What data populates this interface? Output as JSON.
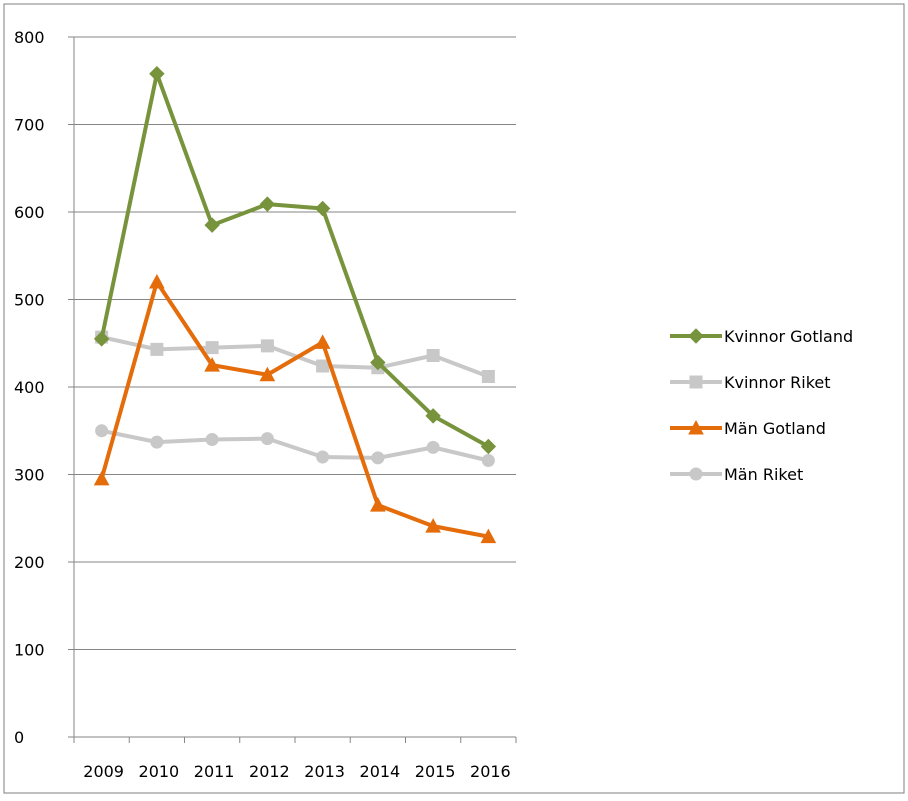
{
  "chart_data": {
    "type": "line",
    "title": "",
    "xlabel": "",
    "ylabel": "",
    "categories": [
      "2009",
      "2010",
      "2011",
      "2012",
      "2013",
      "2014",
      "2015",
      "2016"
    ],
    "ylim": [
      0,
      800
    ],
    "yticks": [
      0,
      100,
      200,
      300,
      400,
      500,
      600,
      700,
      800
    ],
    "grid": true,
    "legend_position": "right",
    "series": [
      {
        "name": "Kvinnor Gotland",
        "marker": "diamond",
        "color": "#77933c",
        "values": [
          455,
          758,
          585,
          609,
          604,
          428,
          367,
          332
        ]
      },
      {
        "name": "Kvinnor Riket",
        "marker": "square",
        "color": "#c8c8c8",
        "values": [
          457,
          443,
          445,
          447,
          424,
          422,
          436,
          412
        ]
      },
      {
        "name": "Män Gotland",
        "marker": "triangle",
        "color": "#e46c0a",
        "values": [
          295,
          520,
          425,
          414,
          451,
          265,
          241,
          229
        ]
      },
      {
        "name": "Män Riket",
        "marker": "circle",
        "color": "#c8c8c8",
        "values": [
          350,
          337,
          340,
          341,
          320,
          319,
          331,
          316
        ]
      }
    ]
  }
}
